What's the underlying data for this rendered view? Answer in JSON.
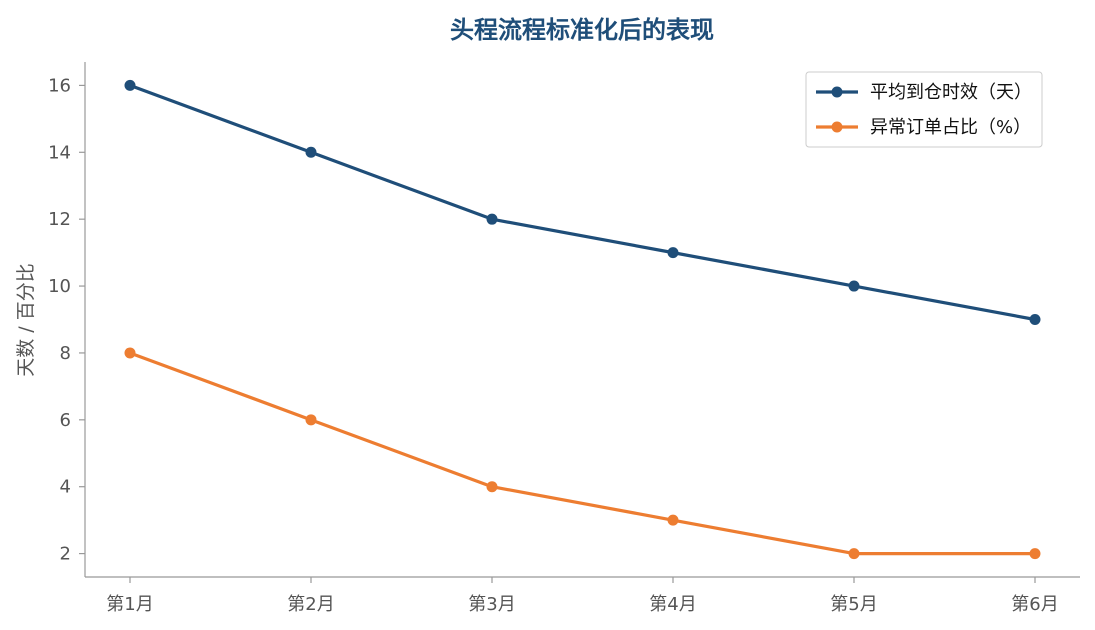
{
  "chart_data": {
    "type": "line",
    "title": "头程流程标准化后的表现",
    "xlabel": "",
    "ylabel": "天数 / 百分比",
    "categories": [
      "第1月",
      "第2月",
      "第3月",
      "第4月",
      "第5月",
      "第6月"
    ],
    "y_ticks": [
      2,
      4,
      6,
      8,
      10,
      12,
      14,
      16
    ],
    "ylim": [
      1.3,
      16.7
    ],
    "grid": false,
    "legend_position": "top-right",
    "series": [
      {
        "name": "平均到仓时效（天）",
        "color": "#1f4e79",
        "values": [
          16,
          14,
          12,
          11,
          10,
          9
        ]
      },
      {
        "name": "异常订单占比（%）",
        "color": "#ed7d31",
        "values": [
          8,
          6,
          4,
          3,
          2,
          2
        ]
      }
    ]
  }
}
